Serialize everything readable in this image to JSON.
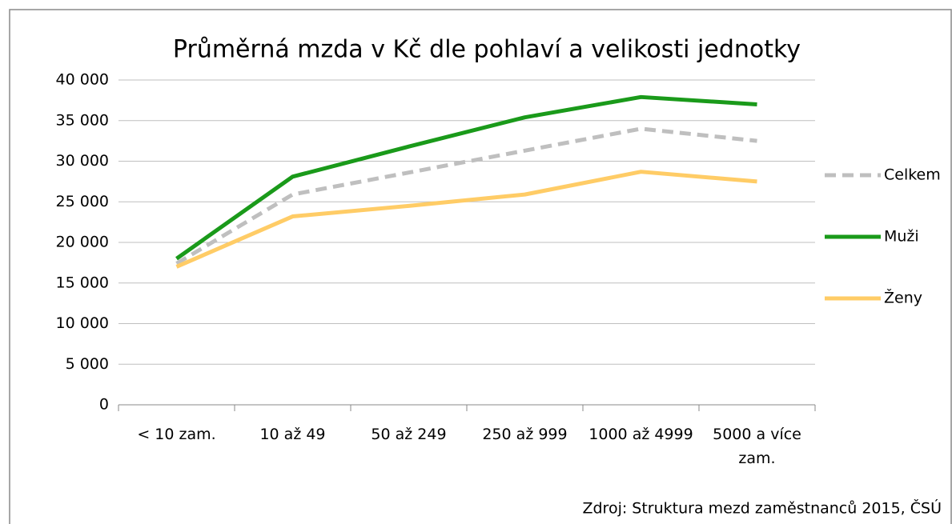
{
  "chart_data": {
    "type": "line",
    "title": "Průměrná mzda v Kč dle pohlaví a velikosti jednotky",
    "categories": [
      "< 10 zam.",
      "10  až 49",
      "50 až 249",
      "250 až 999",
      "1000 až 4999",
      "5000 a více zam."
    ],
    "series": [
      {
        "name": "Celkem",
        "color": "#bfbfbf",
        "dashed": true,
        "values": [
          17400,
          25900,
          28600,
          31300,
          34000,
          32500
        ]
      },
      {
        "name": "Muži",
        "color": "#1a9a1a",
        "dashed": false,
        "values": [
          18000,
          28100,
          31800,
          35400,
          37900,
          37000
        ]
      },
      {
        "name": "Ženy",
        "color": "#ffcc66",
        "dashed": false,
        "values": [
          17000,
          23200,
          24500,
          25900,
          28700,
          27500
        ]
      }
    ],
    "ylim": [
      0,
      40000
    ],
    "yticks": [
      0,
      {
        "value": 5000,
        "label": "5 000"
      },
      {
        "value": 10000,
        "label": "10 000"
      },
      {
        "value": 15000,
        "label": "15 000"
      },
      {
        "value": 20000,
        "label": "20 000"
      },
      {
        "value": 25000,
        "label": "25 000"
      },
      {
        "value": 30000,
        "label": "30 000"
      },
      {
        "value": 35000,
        "label": "35 000"
      },
      {
        "value": 40000,
        "label": "40 000"
      }
    ],
    "grid": true,
    "legend": "right",
    "source": "Zdroj: Struktura mezd zaměstnanců 2015, ČSÚ"
  }
}
